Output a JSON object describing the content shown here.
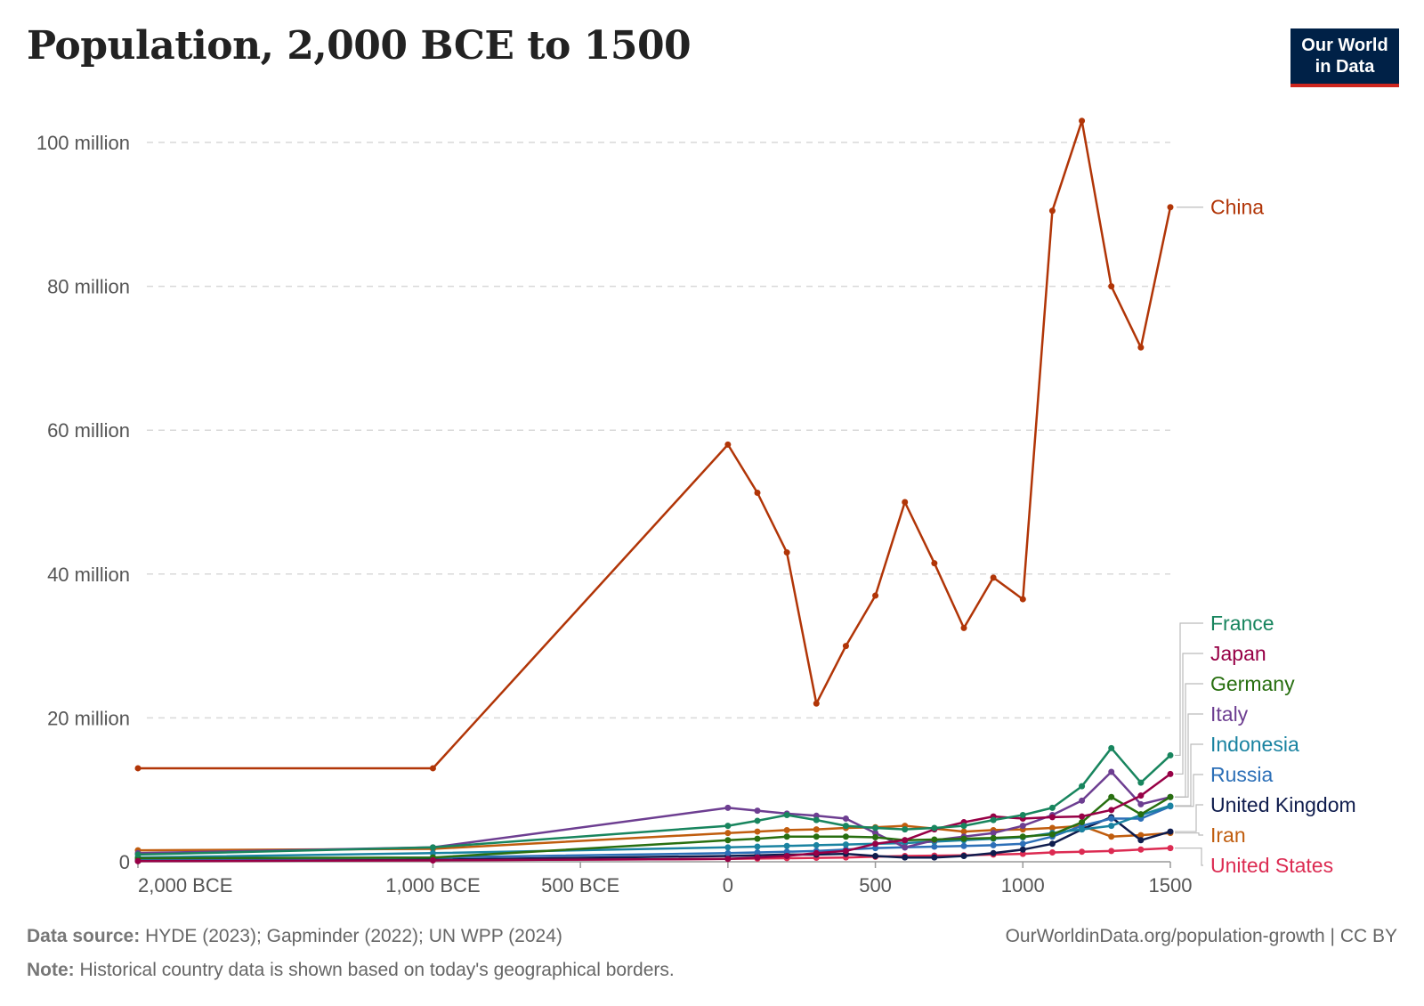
{
  "title": "Population, 2,000 BCE to 1500",
  "logo": {
    "line1": "Our World",
    "line2": "in Data"
  },
  "footer": {
    "source_label": "Data source:",
    "source_text": "HYDE (2023); Gapminder (2022); UN WPP (2024)",
    "note_label": "Note:",
    "note_text": "Historical country data is shown based on today's geographical borders.",
    "credit": "OurWorldinData.org/population-growth | CC BY"
  },
  "chart_data": {
    "type": "line",
    "title": "Population, 2,000 BCE to 1500",
    "xlabel": "",
    "ylabel": "",
    "xlim": [
      -2000,
      1500
    ],
    "ylim": [
      0,
      105000000
    ],
    "grid": "horizontal dashed",
    "legend": "right, labels at line ends",
    "x": [
      -2000,
      -1000,
      0,
      100,
      200,
      300,
      400,
      500,
      600,
      700,
      800,
      900,
      1000,
      1100,
      1200,
      1300,
      1400,
      1500
    ],
    "x_ticks": [
      {
        "value": -2000,
        "label": "2,000 BCE"
      },
      {
        "value": -1000,
        "label": "1,000 BCE"
      },
      {
        "value": -500,
        "label": "500 BCE"
      },
      {
        "value": 0,
        "label": "0"
      },
      {
        "value": 500,
        "label": "500"
      },
      {
        "value": 1000,
        "label": "1000"
      },
      {
        "value": 1500,
        "label": "1500"
      }
    ],
    "y_ticks": [
      {
        "value": 0,
        "label": "0"
      },
      {
        "value": 20000000,
        "label": "20 million"
      },
      {
        "value": 40000000,
        "label": "40 million"
      },
      {
        "value": 60000000,
        "label": "60 million"
      },
      {
        "value": 80000000,
        "label": "80 million"
      },
      {
        "value": 100000000,
        "label": "100 million"
      }
    ],
    "series": [
      {
        "name": "China",
        "color": "#b13507",
        "values": [
          13000000,
          13000000,
          58000000,
          51300000,
          43000000,
          22000000,
          30000000,
          37000000,
          50000000,
          41500000,
          32500000,
          39500000,
          36500000,
          90500000,
          103000000,
          80000000,
          71500000,
          91000000
        ]
      },
      {
        "name": "France",
        "color": "#18855e",
        "values": [
          1000000,
          2000000,
          5000000,
          5700000,
          6500000,
          5800000,
          5000000,
          4700000,
          4500000,
          4700000,
          5000000,
          5800000,
          6500000,
          7500000,
          10500000,
          15800000,
          11000000,
          14800000
        ]
      },
      {
        "name": "Japan",
        "color": "#970046",
        "values": [
          100000,
          200000,
          400000,
          600000,
          800000,
          1200000,
          1500000,
          2500000,
          3000000,
          4500000,
          5500000,
          6300000,
          6000000,
          6200000,
          6300000,
          7200000,
          9200000,
          12200000
        ]
      },
      {
        "name": "Germany",
        "color": "#286f10",
        "values": [
          500000,
          600000,
          3000000,
          3200000,
          3500000,
          3500000,
          3500000,
          3400000,
          3000000,
          3100000,
          3200000,
          3300000,
          3500000,
          3800000,
          5500000,
          9000000,
          6600000,
          9000000
        ]
      },
      {
        "name": "Italy",
        "color": "#6d3e91",
        "values": [
          1200000,
          2000000,
          7500000,
          7100000,
          6700000,
          6400000,
          6000000,
          4000000,
          2000000,
          3000000,
          3500000,
          4000000,
          5000000,
          6500000,
          8500000,
          12500000,
          8000000,
          9000000
        ]
      },
      {
        "name": "Indonesia",
        "color": "#1a83a1",
        "values": [
          600000,
          1200000,
          2000000,
          2100000,
          2200000,
          2300000,
          2400000,
          2500000,
          2600000,
          2800000,
          3000000,
          3200000,
          3400000,
          4000000,
          4500000,
          5000000,
          6500000,
          7800000
        ]
      },
      {
        "name": "Russia",
        "color": "#2c6fb7",
        "values": [
          300000,
          600000,
          1200000,
          1300000,
          1400000,
          1500000,
          1700000,
          1900000,
          2000000,
          2100000,
          2200000,
          2300000,
          2500000,
          3500000,
          5000000,
          6000000,
          6000000,
          7700000
        ]
      },
      {
        "name": "United Kingdom",
        "color": "#0f1c4d",
        "values": [
          100000,
          300000,
          800000,
          900000,
          1000000,
          1000000,
          1100000,
          800000,
          600000,
          600000,
          800000,
          1200000,
          1700000,
          2500000,
          4500000,
          6200000,
          3000000,
          4200000
        ]
      },
      {
        "name": "Iran",
        "color": "#c05d0e",
        "values": [
          1600000,
          1800000,
          4000000,
          4200000,
          4400000,
          4500000,
          4700000,
          4800000,
          5000000,
          4600000,
          4200000,
          4400000,
          4500000,
          4700000,
          5000000,
          3500000,
          3700000,
          4000000
        ]
      },
      {
        "name": "United States",
        "color": "#dc2b52",
        "values": [
          100000,
          200000,
          400000,
          450000,
          500000,
          550000,
          600000,
          700000,
          800000,
          850000,
          900000,
          1000000,
          1100000,
          1300000,
          1400000,
          1500000,
          1700000,
          1900000
        ]
      }
    ]
  }
}
